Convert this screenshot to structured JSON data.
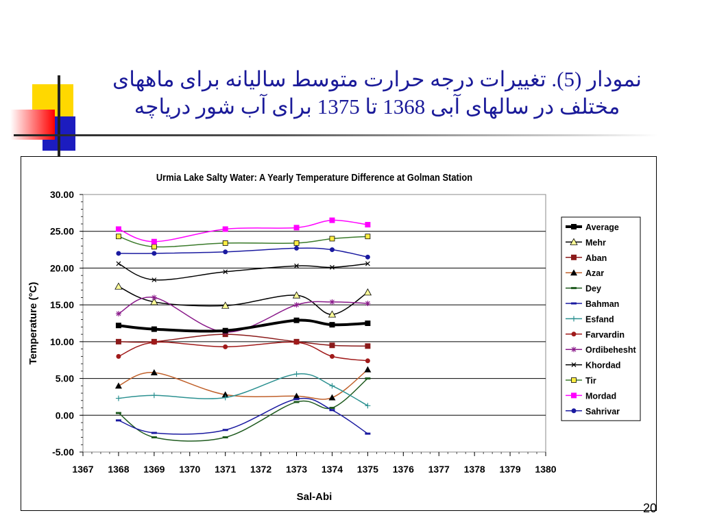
{
  "slide": {
    "title_line1": "نمودار (5). تغییرات درجه حرارت متوسط سالیانه برای ماههای",
    "title_line2": "مختلف در سالهای آبی 1368 تا 1375 برای آب شور دریاچه",
    "page_number": "20"
  },
  "colors": {
    "title": "#1a1a99",
    "deco_yellow": "#ffd800",
    "deco_red": "#ff0000",
    "deco_blue": "#1c1cbf"
  },
  "chart_data": {
    "type": "line",
    "title": "Urmia Lake Salty Water: A Yearly Temperature Difference at Golman Station",
    "xlabel": "Sal-Abi",
    "ylabel": "Temperature  (°C)",
    "xlim": [
      1367,
      1380
    ],
    "ylim": [
      -5,
      30
    ],
    "x_ticks": [
      "1367",
      "1368",
      "1369",
      "1370",
      "1371",
      "1372",
      "1373",
      "1374",
      "1375",
      "1376",
      "1377",
      "1378",
      "1379",
      "1380"
    ],
    "y_ticks": [
      "30.00",
      "25.00",
      "20.00",
      "15.00",
      "10.00",
      "5.00",
      "0.00",
      "-5.00"
    ],
    "grid": "horizontal",
    "legend_position": "right",
    "x": [
      1368,
      1369,
      1371,
      1373,
      1374,
      1375
    ],
    "series": [
      {
        "name": "Average",
        "color": "#000000",
        "marker": "square",
        "width": 4,
        "values": [
          12.2,
          11.7,
          11.5,
          12.9,
          12.3,
          12.5
        ]
      },
      {
        "name": "Mehr",
        "color": "#000000",
        "marker": "triangle-open",
        "width": 1.5,
        "values": [
          17.5,
          15.4,
          14.9,
          16.3,
          13.7,
          16.7
        ]
      },
      {
        "name": "Aban",
        "color": "#8b1a1a",
        "marker": "square",
        "width": 1.5,
        "values": [
          10.0,
          10.0,
          11.0,
          10.0,
          9.5,
          9.4
        ]
      },
      {
        "name": "Azar",
        "color": "#c0602a",
        "marker": "triangle",
        "width": 1.5,
        "values": [
          4.0,
          5.8,
          2.8,
          2.6,
          2.4,
          6.2
        ]
      },
      {
        "name": "Dey",
        "color": "#1e5a1e",
        "marker": "dash",
        "width": 1.5,
        "values": [
          0.3,
          -3.0,
          -3.0,
          1.8,
          1.0,
          5.0
        ]
      },
      {
        "name": "Bahman",
        "color": "#1a1aa0",
        "marker": "dash",
        "width": 1.5,
        "values": [
          -0.7,
          -2.4,
          -2.0,
          2.2,
          0.7,
          -2.5
        ]
      },
      {
        "name": "Esfand",
        "color": "#2a9090",
        "marker": "plus",
        "width": 1.5,
        "values": [
          2.3,
          2.7,
          2.4,
          5.6,
          4.0,
          1.3
        ]
      },
      {
        "name": "Farvardin",
        "color": "#a01a1a",
        "marker": "circle",
        "width": 1.5,
        "values": [
          8.0,
          9.9,
          9.3,
          9.9,
          8.0,
          7.4
        ]
      },
      {
        "name": "Ordibehesht",
        "color": "#8a1a8a",
        "marker": "star",
        "width": 1.5,
        "values": [
          13.8,
          16.0,
          11.3,
          15.0,
          15.4,
          15.2
        ]
      },
      {
        "name": "Khordad",
        "color": "#000000",
        "marker": "x",
        "width": 1.5,
        "values": [
          20.6,
          18.4,
          19.5,
          20.3,
          20.1,
          20.6
        ]
      },
      {
        "name": "Tir",
        "color": "#3a7a2a",
        "marker": "square-yellow",
        "width": 1.5,
        "values": [
          24.3,
          22.9,
          23.4,
          23.4,
          24.0,
          24.3
        ]
      },
      {
        "name": "Mordad",
        "color": "#ff00ff",
        "marker": "square",
        "width": 1.5,
        "values": [
          25.3,
          23.6,
          25.3,
          25.5,
          26.5,
          25.9
        ]
      },
      {
        "name": "Sahrivar",
        "color": "#1a1aa0",
        "marker": "circle",
        "width": 1.5,
        "values": [
          22.0,
          22.0,
          22.2,
          22.7,
          22.5,
          21.5
        ]
      }
    ]
  }
}
